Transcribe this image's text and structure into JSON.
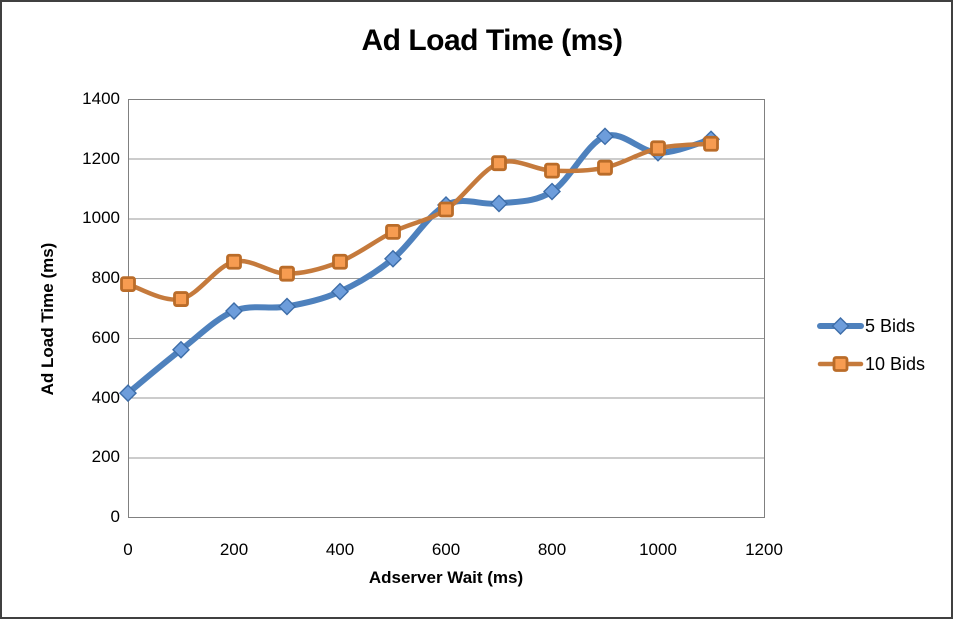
{
  "chart_data": {
    "type": "line",
    "title": "Ad Load Time (ms)",
    "xlabel": "Adserver Wait (ms)",
    "ylabel": "Ad Load Time (ms)",
    "x": [
      0,
      100,
      200,
      300,
      400,
      500,
      600,
      700,
      800,
      900,
      1000,
      1100
    ],
    "series": [
      {
        "name": "5 Bids",
        "marker": "diamond",
        "line_color": "#4e81bd",
        "marker_fill": "#6d9ddb",
        "marker_stroke": "#3d6da8",
        "line_width": 6,
        "values": [
          415,
          560,
          690,
          705,
          755,
          865,
          1045,
          1050,
          1090,
          1275,
          1220,
          1265
        ]
      },
      {
        "name": "10 Bids",
        "marker": "square",
        "line_color": "#c57a3c",
        "marker_fill": "#f79c51",
        "marker_stroke": "#ba6c29",
        "line_width": 4.5,
        "values": [
          780,
          730,
          855,
          815,
          855,
          955,
          1030,
          1185,
          1160,
          1170,
          1235,
          1250
        ]
      }
    ],
    "xlim": [
      0,
      1200
    ],
    "ylim": [
      0,
      1400
    ],
    "x_ticks": [
      0,
      200,
      400,
      600,
      800,
      1000,
      1200
    ],
    "y_ticks": [
      0,
      200,
      400,
      600,
      800,
      1000,
      1200,
      1400
    ],
    "grid": "horizontal",
    "grid_color": "#9a9a9a",
    "border_color": "#808080",
    "legend_position": "right",
    "smooth_lines": true
  }
}
